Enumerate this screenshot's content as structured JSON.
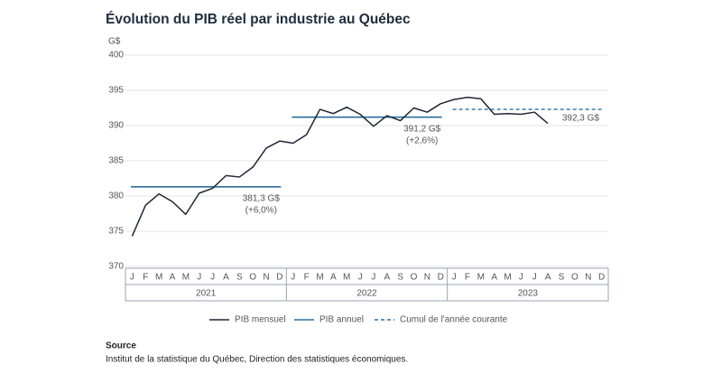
{
  "chart_data": {
    "type": "line",
    "title": "Évolution du PIB réel par industrie au Québec",
    "y_unit": "G$",
    "categories": [
      "J",
      "F",
      "M",
      "A",
      "M",
      "J",
      "J",
      "A",
      "S",
      "O",
      "N",
      "D",
      "J",
      "F",
      "M",
      "A",
      "M",
      "J",
      "J",
      "A",
      "S",
      "O",
      "N",
      "D",
      "J",
      "F",
      "M",
      "A",
      "M",
      "J",
      "J",
      "A",
      "S",
      "O",
      "N",
      "D"
    ],
    "years": [
      "2021",
      "2022",
      "2023"
    ],
    "ylim": [
      370,
      400
    ],
    "yticks": [
      370,
      375,
      380,
      385,
      390,
      395,
      400
    ],
    "grid": true,
    "series": [
      {
        "name": "PIB mensuel",
        "color": "#1f2633",
        "values": [
          374.3,
          378.7,
          380.3,
          379.2,
          377.4,
          380.4,
          381.1,
          382.9,
          382.7,
          384.1,
          386.8,
          387.8,
          387.5,
          388.7,
          392.3,
          391.7,
          392.6,
          391.6,
          389.9,
          391.4,
          390.7,
          392.5,
          391.9,
          393.1,
          393.7,
          394.0,
          393.8,
          391.6,
          391.7,
          391.6,
          391.9,
          390.3,
          null,
          null,
          null,
          null
        ]
      }
    ],
    "annual": {
      "name": "PIB annuel",
      "color": "#2b6f9e",
      "values": [
        381.3,
        391.2
      ],
      "value_labels": [
        "381,3 G$",
        "391,2 G$"
      ],
      "notes": [
        "(+6,0%)",
        "(+2,6%)"
      ]
    },
    "ytd": {
      "name": "Cumul de l'année courante",
      "color": "#2b6f9e",
      "dashed": true,
      "value": 392.3,
      "value_label": "392,3 G$"
    },
    "source_title": "Source",
    "source": "Institut de la statistique du Québec, Direction des statistiques économiques."
  }
}
